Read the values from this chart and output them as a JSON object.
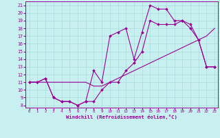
{
  "xlabel": "Windchill (Refroidissement éolien,°C)",
  "bg_color": "#c8f0f0",
  "line_color": "#990099",
  "grid_color": "#aadddd",
  "xlim": [
    -0.5,
    23.4
  ],
  "ylim": [
    7.7,
    21.5
  ],
  "yticks": [
    8,
    9,
    10,
    11,
    12,
    13,
    14,
    15,
    16,
    17,
    18,
    19,
    20,
    21
  ],
  "xticks": [
    0,
    1,
    2,
    3,
    4,
    5,
    6,
    7,
    8,
    9,
    10,
    11,
    12,
    13,
    14,
    15,
    16,
    17,
    18,
    19,
    20,
    21,
    22,
    23
  ],
  "series1_x": [
    0,
    1,
    2,
    3,
    4,
    5,
    6,
    7,
    8,
    9,
    10,
    11,
    12,
    13,
    14,
    15,
    16,
    17,
    18,
    19,
    20,
    21,
    22,
    23
  ],
  "series1_y": [
    11,
    11,
    11.5,
    9,
    8.5,
    8.5,
    8,
    8.5,
    8.5,
    10,
    11,
    11,
    12.5,
    13.5,
    15,
    19,
    18.5,
    18.5,
    18.5,
    19,
    18,
    16.5,
    13,
    13
  ],
  "series2_x": [
    0,
    1,
    2,
    3,
    4,
    5,
    6,
    7,
    8,
    9,
    10,
    11,
    12,
    13,
    14,
    15,
    16,
    17,
    18,
    19,
    20,
    21,
    22,
    23
  ],
  "series2_y": [
    11,
    11,
    11,
    11,
    11,
    11,
    11,
    11,
    10.5,
    10.5,
    11,
    11.5,
    12,
    12.5,
    13,
    13.5,
    14,
    14.5,
    15,
    15.5,
    16,
    16.5,
    17,
    18
  ],
  "series3_x": [
    0,
    1,
    2,
    3,
    4,
    5,
    6,
    7,
    8,
    9,
    10,
    11,
    12,
    13,
    14,
    15,
    16,
    17,
    18,
    19,
    20,
    21,
    22,
    23
  ],
  "series3_y": [
    11,
    11,
    11.5,
    9,
    8.5,
    8.5,
    8,
    8.5,
    12.5,
    11,
    17,
    17.5,
    18,
    14,
    17.5,
    21,
    20.5,
    20.5,
    19,
    19,
    18.5,
    16.5,
    13,
    13
  ]
}
